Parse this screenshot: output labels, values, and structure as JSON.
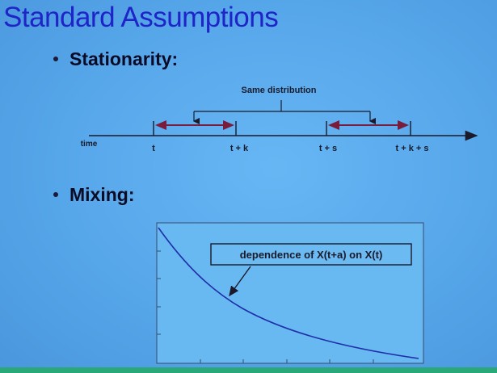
{
  "slide": {
    "title": "Standard Assumptions",
    "bullets": [
      {
        "label": "Stationarity:"
      },
      {
        "label": "Mixing:"
      }
    ]
  },
  "timeline": {
    "bracket_label": "Same distribution",
    "axis_label": "time",
    "ticks": [
      "t",
      "t + k",
      "t + s",
      "t + k + s"
    ]
  },
  "plot": {
    "annotation": "dependence of X(t+a) on X(t)"
  },
  "colors": {
    "title": "#1e24c8",
    "interval": "#7a1c3c",
    "curve": "#1f2fa8",
    "background": "#5aaaee"
  }
}
